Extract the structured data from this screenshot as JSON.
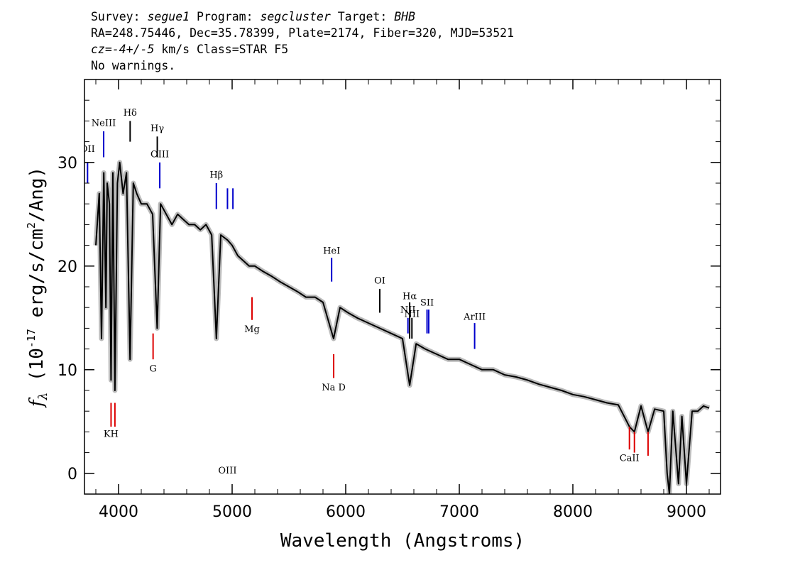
{
  "header": {
    "line1": {
      "survey_label": "Survey: ",
      "survey": "segue1",
      "program_label": " Program: ",
      "program": "segcluster",
      "target_label": " Target: ",
      "target": "BHB"
    },
    "line2": "RA=248.75446, Dec=35.78399, Plate=2174, Fiber=320, MJD=53521",
    "line3": {
      "cz_label": "cz=",
      "cz_value": "-4+/-5",
      "unit_class": " km/s Class=STAR F5"
    },
    "line4": "No warnings."
  },
  "chart_data": {
    "type": "line",
    "xlabel": "Wavelength (Angstroms)",
    "ylabel": {
      "f": "f",
      "sub": "λ",
      "pre": " (10",
      "sup1": "-17",
      "mid": " erg/s/cm",
      "sup2": "2",
      "post": "/Ang)"
    },
    "xlim": [
      3700,
      9300
    ],
    "ylim": [
      -2,
      38
    ],
    "xticks": [
      4000,
      5000,
      6000,
      7000,
      8000,
      9000
    ],
    "yticks": [
      0,
      10,
      20,
      30
    ],
    "series": [
      {
        "role": "flux",
        "color": "#000000",
        "points": [
          [
            3800,
            22
          ],
          [
            3830,
            27
          ],
          [
            3850,
            13
          ],
          [
            3870,
            29
          ],
          [
            3889,
            16
          ],
          [
            3900,
            28
          ],
          [
            3920,
            26
          ],
          [
            3934,
            9
          ],
          [
            3950,
            29
          ],
          [
            3968,
            8
          ],
          [
            3990,
            28
          ],
          [
            4010,
            30
          ],
          [
            4040,
            27
          ],
          [
            4070,
            29
          ],
          [
            4101,
            11
          ],
          [
            4130,
            28
          ],
          [
            4160,
            27
          ],
          [
            4200,
            26
          ],
          [
            4250,
            26
          ],
          [
            4300,
            25
          ],
          [
            4340,
            14
          ],
          [
            4370,
            26
          ],
          [
            4420,
            25
          ],
          [
            4470,
            24
          ],
          [
            4520,
            25
          ],
          [
            4570,
            24.5
          ],
          [
            4620,
            24
          ],
          [
            4670,
            24
          ],
          [
            4720,
            23.5
          ],
          [
            4770,
            24
          ],
          [
            4820,
            23
          ],
          [
            4861,
            13
          ],
          [
            4900,
            23
          ],
          [
            4960,
            22.5
          ],
          [
            5000,
            22
          ],
          [
            5050,
            21
          ],
          [
            5100,
            20.5
          ],
          [
            5150,
            20
          ],
          [
            5200,
            20
          ],
          [
            5270,
            19.5
          ],
          [
            5350,
            19
          ],
          [
            5420,
            18.5
          ],
          [
            5500,
            18
          ],
          [
            5580,
            17.5
          ],
          [
            5650,
            17
          ],
          [
            5730,
            17
          ],
          [
            5800,
            16.5
          ],
          [
            5893,
            13
          ],
          [
            5950,
            16
          ],
          [
            6020,
            15.5
          ],
          [
            6100,
            15
          ],
          [
            6200,
            14.5
          ],
          [
            6300,
            14
          ],
          [
            6400,
            13.5
          ],
          [
            6500,
            13
          ],
          [
            6563,
            8.5
          ],
          [
            6620,
            12.5
          ],
          [
            6700,
            12
          ],
          [
            6800,
            11.5
          ],
          [
            6900,
            11
          ],
          [
            7000,
            11
          ],
          [
            7100,
            10.5
          ],
          [
            7200,
            10
          ],
          [
            7300,
            10
          ],
          [
            7400,
            9.5
          ],
          [
            7500,
            9.3
          ],
          [
            7600,
            9
          ],
          [
            7700,
            8.6
          ],
          [
            7800,
            8.3
          ],
          [
            7900,
            8
          ],
          [
            8000,
            7.6
          ],
          [
            8100,
            7.4
          ],
          [
            8200,
            7.1
          ],
          [
            8300,
            6.8
          ],
          [
            8400,
            6.6
          ],
          [
            8498,
            4.5
          ],
          [
            8542,
            4
          ],
          [
            8600,
            6.5
          ],
          [
            8662,
            4
          ],
          [
            8720,
            6.2
          ],
          [
            8800,
            6
          ],
          [
            8830,
            0
          ],
          [
            8850,
            -2
          ],
          [
            8880,
            6
          ],
          [
            8930,
            -1
          ],
          [
            8960,
            5.5
          ],
          [
            9000,
            -1
          ],
          [
            9050,
            6
          ],
          [
            9100,
            6
          ],
          [
            9150,
            6.5
          ],
          [
            9200,
            6.3
          ]
        ]
      },
      {
        "role": "error",
        "color": "#bbbbbb",
        "band": 1.2
      }
    ],
    "emission_lines": [
      {
        "label": "OII",
        "x": 3727,
        "y_top": 30,
        "y_bot": 28,
        "color": "#0000cc",
        "label_y": 31
      },
      {
        "label": "NeIII",
        "x": 3869,
        "y_top": 33,
        "y_bot": 30.5,
        "color": "#0000cc",
        "label_y": 33.5
      },
      {
        "label": "Hδ",
        "x": 4102,
        "y_top": 34,
        "y_bot": 32,
        "color": "#000000",
        "label_y": 34.5
      },
      {
        "label": "Hγ",
        "x": 4341,
        "y_top": 32.5,
        "y_bot": 30.5,
        "color": "#000000",
        "label_y": 33
      },
      {
        "label": "OIII",
        "x": 4363,
        "y_top": 30,
        "y_bot": 27.5,
        "color": "#0000cc",
        "label_y": 30.5
      },
      {
        "label": "Hβ",
        "x": 4861,
        "y_top": 28,
        "y_bot": 25.5,
        "color": "#0000cc",
        "label_y": 28.5
      },
      {
        "label": "OIII",
        "x": 4959,
        "y_top": 27.5,
        "y_bot": 25.5,
        "color": "#0000cc",
        "label_y": ""
      },
      {
        "label": "",
        "x": 5007,
        "y_top": 27.5,
        "y_bot": 25.5,
        "color": "#0000cc",
        "label_y": 28
      },
      {
        "label": "HeI",
        "x": 5876,
        "y_top": 20.8,
        "y_bot": 18.5,
        "color": "#0000cc",
        "label_y": 21.2
      },
      {
        "label": "OI",
        "x": 6300,
        "y_top": 17.8,
        "y_bot": 15.5,
        "color": "#000000",
        "label_y": 18.3
      },
      {
        "label": "NII",
        "x": 6548,
        "y_top": 15,
        "y_bot": 13.5,
        "color": "#0000cc",
        "label_y": 15.5
      },
      {
        "label": "Hα",
        "x": 6563,
        "y_top": 16.5,
        "y_bot": 13,
        "color": "#000000",
        "label_y": 16.8
      },
      {
        "label": "NII",
        "x": 6583,
        "y_top": 15,
        "y_bot": 13,
        "color": "#000000",
        "label_y": 15.1
      },
      {
        "label": "SII",
        "x": 6716,
        "y_top": 15.8,
        "y_bot": 13.5,
        "color": "#0000cc",
        "label_y": 16.2
      },
      {
        "label": "",
        "x": 6731,
        "y_top": 15.8,
        "y_bot": 13.5,
        "color": "#0000cc",
        "label_y": ""
      },
      {
        "label": "ArIII",
        "x": 7135,
        "y_top": 14.5,
        "y_bot": 12,
        "color": "#0000cc",
        "label_y": 14.8
      }
    ],
    "absorption_lines": [
      {
        "label": "KH",
        "x": 3934,
        "y_top": 6.8,
        "y_bot": 4.5,
        "color": "#dd0000",
        "label_y": 3.5
      },
      {
        "label": "",
        "x": 3968,
        "y_top": 6.8,
        "y_bot": 4.5,
        "color": "#dd0000",
        "label_y": ""
      },
      {
        "label": "G",
        "x": 4304,
        "y_top": 13.5,
        "y_bot": 11,
        "color": "#dd0000",
        "label_y": 9.8
      },
      {
        "label": "Mg",
        "x": 5175,
        "y_top": 17,
        "y_bot": 14.8,
        "color": "#dd0000",
        "label_y": 13.6
      },
      {
        "label": "Na D",
        "x": 5894,
        "y_top": 11.5,
        "y_bot": 9.2,
        "color": "#dd0000",
        "label_y": 8
      },
      {
        "label": "CaII",
        "x": 8498,
        "y_top": 4.5,
        "y_bot": 2.3,
        "color": "#dd0000",
        "label_y": 1.2
      },
      {
        "label": "",
        "x": 8542,
        "y_top": 4,
        "y_bot": 2,
        "color": "#dd0000",
        "label_y": ""
      },
      {
        "label": "",
        "x": 8662,
        "y_top": 4,
        "y_bot": 1.7,
        "color": "#dd0000",
        "label_y": ""
      }
    ]
  }
}
